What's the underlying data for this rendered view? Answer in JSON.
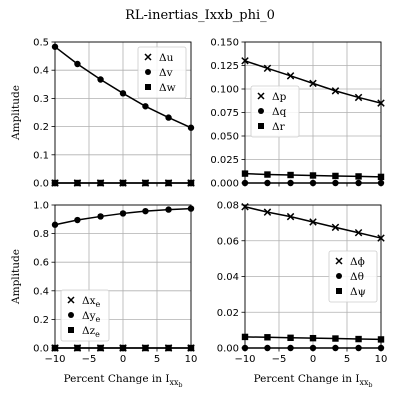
{
  "figure": {
    "title": "RL-inertias_Ixxb_phi_0"
  },
  "chart_data": [
    {
      "type": "line",
      "x": [
        -10,
        -6.7,
        -3.3,
        0,
        3.3,
        6.7,
        10
      ],
      "xlim": [
        -10,
        10
      ],
      "xticks": [
        "",
        "",
        "",
        "",
        ""
      ],
      "ylim": [
        0,
        0.5
      ],
      "yticks": [
        "0.0",
        "0.1",
        "0.2",
        "0.3",
        "0.4",
        "0.5"
      ],
      "ylabel": "Amplitude",
      "xlabel": "",
      "grid": true,
      "legend_position": "upper-right",
      "series": [
        {
          "name": "Δu",
          "marker": "x",
          "values": [
            0.0,
            0.0,
            0.0,
            0.0,
            0.0,
            0.0,
            0.0
          ]
        },
        {
          "name": "Δv",
          "marker": "circle",
          "values": [
            0.483,
            0.422,
            0.367,
            0.318,
            0.272,
            0.232,
            0.196
          ]
        },
        {
          "name": "Δw",
          "marker": "square",
          "values": [
            0.0,
            0.0,
            0.0,
            0.0,
            0.0,
            0.0,
            0.0
          ]
        }
      ]
    },
    {
      "type": "line",
      "x": [
        -10,
        -6.7,
        -3.3,
        0,
        3.3,
        6.7,
        10
      ],
      "xlim": [
        -10,
        10
      ],
      "xticks": [
        "",
        "",
        "",
        "",
        ""
      ],
      "ylim": [
        0,
        0.15
      ],
      "yticks": [
        "0.000",
        "0.025",
        "0.050",
        "0.075",
        "0.100",
        "0.125",
        "0.150"
      ],
      "ylabel": "",
      "xlabel": "",
      "grid": true,
      "legend_position": "center-left",
      "series": [
        {
          "name": "Δp",
          "marker": "x",
          "values": [
            0.13,
            0.122,
            0.114,
            0.106,
            0.098,
            0.091,
            0.085
          ]
        },
        {
          "name": "Δq",
          "marker": "circle",
          "values": [
            0.0,
            0.0,
            0.0,
            0.0,
            0.0,
            0.0,
            0.0
          ]
        },
        {
          "name": "Δr",
          "marker": "square",
          "values": [
            0.01,
            0.009,
            0.0085,
            0.008,
            0.0075,
            0.007,
            0.0065
          ]
        }
      ]
    },
    {
      "type": "line",
      "x": [
        -10,
        -6.7,
        -3.3,
        0,
        3.3,
        6.7,
        10
      ],
      "xlim": [
        -10,
        10
      ],
      "xticks": [
        "−10",
        "−5",
        "0",
        "5",
        "10"
      ],
      "ylim": [
        0,
        1.0
      ],
      "yticks": [
        "0.0",
        "0.2",
        "0.4",
        "0.6",
        "0.8",
        "1.0"
      ],
      "ylabel": "Amplitude",
      "xlabel": "Percent Change in I",
      "xlabel_sub": "xx",
      "xlabel_subsub": "b",
      "grid": true,
      "legend_position": "lower-left",
      "series": [
        {
          "name": "Δx",
          "name_sub": "e",
          "marker": "x",
          "values": [
            0.0,
            0.0,
            0.0,
            0.0,
            0.0,
            0.0,
            0.0
          ]
        },
        {
          "name": "Δy",
          "name_sub": "e",
          "marker": "circle",
          "values": [
            0.862,
            0.895,
            0.92,
            0.941,
            0.957,
            0.968,
            0.975
          ]
        },
        {
          "name": "Δz",
          "name_sub": "e",
          "marker": "square",
          "values": [
            0.0,
            0.0,
            0.0,
            0.0,
            0.0,
            0.0,
            0.0
          ]
        }
      ]
    },
    {
      "type": "line",
      "x": [
        -10,
        -6.7,
        -3.3,
        0,
        3.3,
        6.7,
        10
      ],
      "xlim": [
        -10,
        10
      ],
      "xticks": [
        "−10",
        "−5",
        "0",
        "5",
        "10"
      ],
      "ylim": [
        0,
        0.08
      ],
      "yticks": [
        "0.00",
        "0.02",
        "0.04",
        "0.06",
        "0.08"
      ],
      "ylabel": "",
      "xlabel": "Percent Change in I",
      "xlabel_sub": "xx",
      "xlabel_subsub": "b",
      "grid": true,
      "legend_position": "center-right",
      "series": [
        {
          "name": "Δϕ",
          "marker": "x",
          "values": [
            0.079,
            0.076,
            0.0735,
            0.0705,
            0.0675,
            0.0645,
            0.0615
          ]
        },
        {
          "name": "Δθ",
          "marker": "circle",
          "values": [
            0.0,
            0.0,
            0.0,
            0.0,
            0.0,
            0.0,
            0.0
          ]
        },
        {
          "name": "Δψ",
          "marker": "square",
          "values": [
            0.0062,
            0.006,
            0.0057,
            0.0055,
            0.0053,
            0.005,
            0.0048
          ]
        }
      ]
    }
  ]
}
